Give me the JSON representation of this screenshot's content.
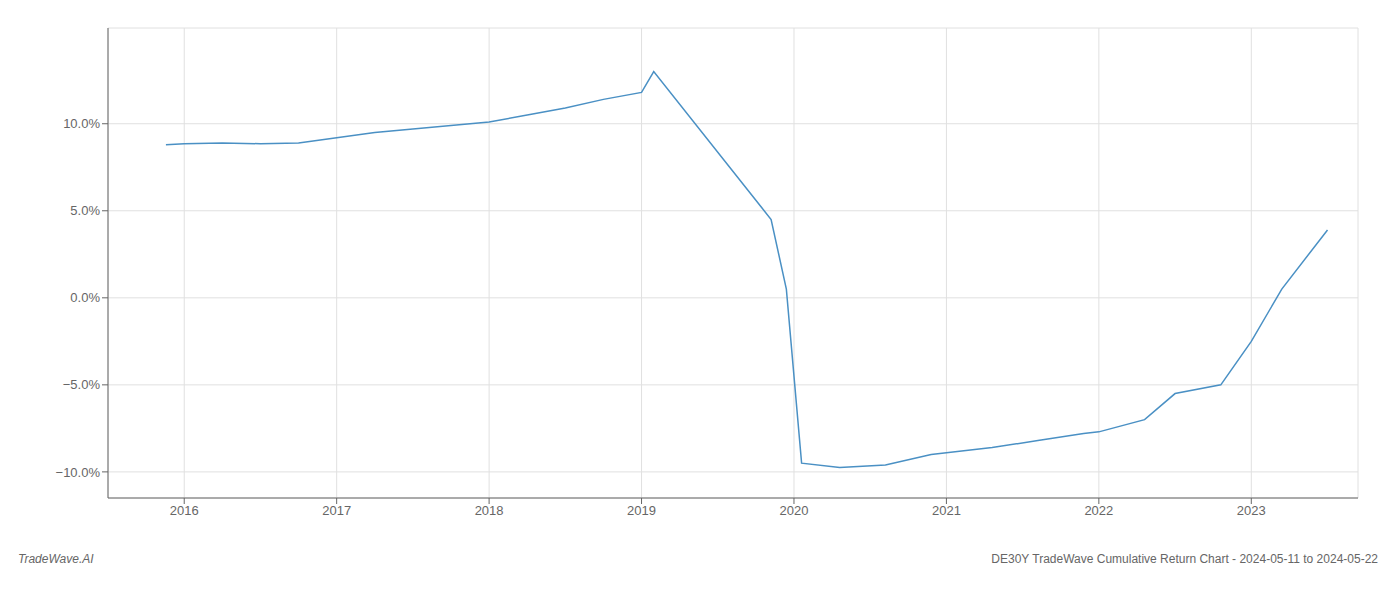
{
  "chart_data": {
    "type": "line",
    "x": [
      2015.88,
      2016.0,
      2016.25,
      2016.5,
      2016.75,
      2017.0,
      2017.25,
      2017.5,
      2017.75,
      2018.0,
      2018.25,
      2018.5,
      2018.75,
      2019.0,
      2019.08,
      2019.85,
      2019.95,
      2020.05,
      2020.3,
      2020.6,
      2020.9,
      2021.0,
      2021.3,
      2021.6,
      2021.9,
      2022.0,
      2022.3,
      2022.5,
      2022.8,
      2023.0,
      2023.2,
      2023.5
    ],
    "values": [
      8.8,
      8.85,
      8.9,
      8.85,
      8.9,
      9.2,
      9.5,
      9.7,
      9.9,
      10.1,
      10.5,
      10.9,
      11.4,
      11.8,
      13.0,
      4.5,
      0.5,
      -9.5,
      -9.75,
      -9.6,
      -9.0,
      -8.9,
      -8.6,
      -8.2,
      -7.8,
      -7.7,
      -7.0,
      -5.5,
      -5.0,
      -2.5,
      0.5,
      3.9
    ],
    "color": "#4a90c4",
    "xlim": [
      2015.5,
      2023.7
    ],
    "ylim": [
      -11.5,
      15.5
    ],
    "xticks": [
      2016,
      2017,
      2018,
      2019,
      2020,
      2021,
      2022,
      2023
    ],
    "yticks": [
      {
        "value": -10.0,
        "label": "−10.0%"
      },
      {
        "value": -5.0,
        "label": "−5.0%"
      },
      {
        "value": 0.0,
        "label": "0.0%"
      },
      {
        "value": 5.0,
        "label": "5.0%"
      },
      {
        "value": 10.0,
        "label": "10.0%"
      }
    ],
    "grid": true,
    "annotations": [
      "TradeWave.AI",
      "DE30Y TradeWave Cumulative Return Chart - 2024-05-11 to 2024-05-22"
    ]
  }
}
